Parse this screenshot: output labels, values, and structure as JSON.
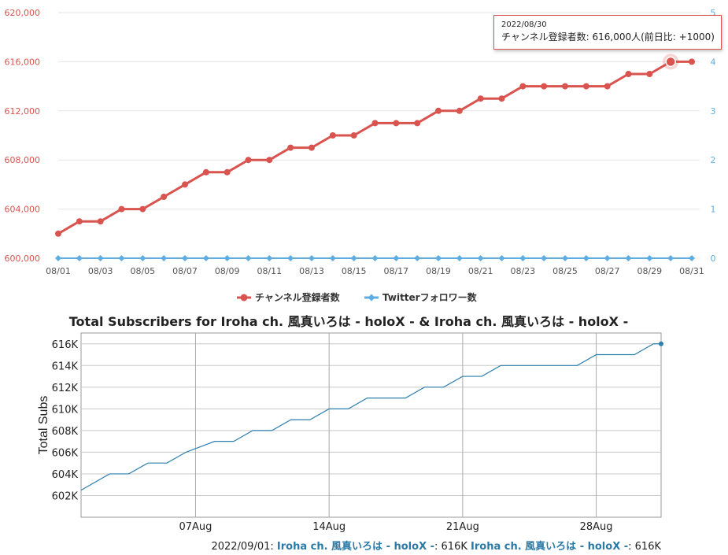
{
  "top_tooltip": {
    "date": "2022/08/30",
    "line": "チャンネル登録者数: 616,000人(前日比: +1000)"
  },
  "footer": {
    "date_prefix": "2022/09/01:",
    "name1": "Iroha ch. 風真いろは - holoX -",
    "val1": ": 616K",
    "name2": "Iroha ch. 風真いろは - holoX -",
    "val2": ": 616K"
  },
  "colors": {
    "subs": "#d9534f",
    "twitter": "#5dade2",
    "bottom_line": "#2b7fad"
  },
  "chart_data": [
    {
      "type": "line",
      "x_tick_labels": [
        "08/01",
        "08/03",
        "08/05",
        "08/07",
        "08/09",
        "08/11",
        "08/13",
        "08/15",
        "08/17",
        "08/19",
        "08/21",
        "08/23",
        "08/25",
        "08/27",
        "08/29",
        "08/31"
      ],
      "y_left_ticks": [
        "600,000",
        "604,000",
        "608,000",
        "612,000",
        "616,000",
        "620,000"
      ],
      "y_right_ticks": [
        "0",
        "1",
        "2",
        "3",
        "4",
        "5"
      ],
      "y_left_range": [
        600000,
        620000
      ],
      "y_right_range": [
        0,
        5
      ],
      "x_days": [
        1,
        2,
        3,
        4,
        5,
        6,
        7,
        8,
        9,
        10,
        11,
        12,
        13,
        14,
        15,
        16,
        17,
        18,
        19,
        20,
        21,
        22,
        23,
        24,
        25,
        26,
        27,
        28,
        29,
        30,
        31
      ],
      "series": [
        {
          "name": "チャンネル登録者数",
          "axis": "left",
          "values": [
            602000,
            603000,
            603000,
            604000,
            604000,
            605000,
            606000,
            607000,
            607000,
            608000,
            608000,
            609000,
            609000,
            610000,
            610000,
            611000,
            611000,
            611000,
            612000,
            612000,
            613000,
            613000,
            614000,
            614000,
            614000,
            614000,
            614000,
            615000,
            615000,
            616000,
            616000
          ]
        },
        {
          "name": "Twitterフォロワー数",
          "axis": "right",
          "values": [
            0,
            0,
            0,
            0,
            0,
            0,
            0,
            0,
            0,
            0,
            0,
            0,
            0,
            0,
            0,
            0,
            0,
            0,
            0,
            0,
            0,
            0,
            0,
            0,
            0,
            0,
            0,
            0,
            0,
            0,
            0
          ]
        }
      ],
      "highlight_day": 30,
      "legend_position": "bottom"
    },
    {
      "type": "line",
      "title": "Total Subscribers for Iroha ch. 風真いろは - holoX - & Iroha ch. 風真いろは - holoX -",
      "ylabel": "Total Subs",
      "x_tick_labels": [
        "07Aug",
        "14Aug",
        "21Aug",
        "28Aug"
      ],
      "x_tick_days": [
        7,
        14,
        21,
        28
      ],
      "x_range": [
        1,
        31.4
      ],
      "y_tick_labels": [
        "602K",
        "604K",
        "606K",
        "608K",
        "610K",
        "612K",
        "614K",
        "616K"
      ],
      "y_tick_values": [
        602000,
        604000,
        606000,
        608000,
        610000,
        612000,
        614000,
        616000
      ],
      "y_range": [
        600000,
        617000
      ],
      "series": [
        {
          "name": "Iroha ch. 風真いろは - holoX -",
          "points": [
            [
              1,
              602500
            ],
            [
              2.5,
              604000
            ],
            [
              3.5,
              604000
            ],
            [
              4.5,
              605000
            ],
            [
              5.5,
              605000
            ],
            [
              6.5,
              606000
            ],
            [
              8,
              607000
            ],
            [
              9,
              607000
            ],
            [
              10,
              608000
            ],
            [
              11,
              608000
            ],
            [
              12,
              609000
            ],
            [
              13,
              609000
            ],
            [
              14,
              610000
            ],
            [
              15,
              610000
            ],
            [
              16,
              611000
            ],
            [
              18,
              611000
            ],
            [
              19,
              612000
            ],
            [
              20,
              612000
            ],
            [
              21,
              613000
            ],
            [
              22,
              613000
            ],
            [
              23,
              614000
            ],
            [
              27,
              614000
            ],
            [
              28,
              615000
            ],
            [
              30,
              615000
            ],
            [
              31,
              616000
            ],
            [
              31.4,
              616000
            ]
          ]
        }
      ],
      "grid": true
    }
  ]
}
